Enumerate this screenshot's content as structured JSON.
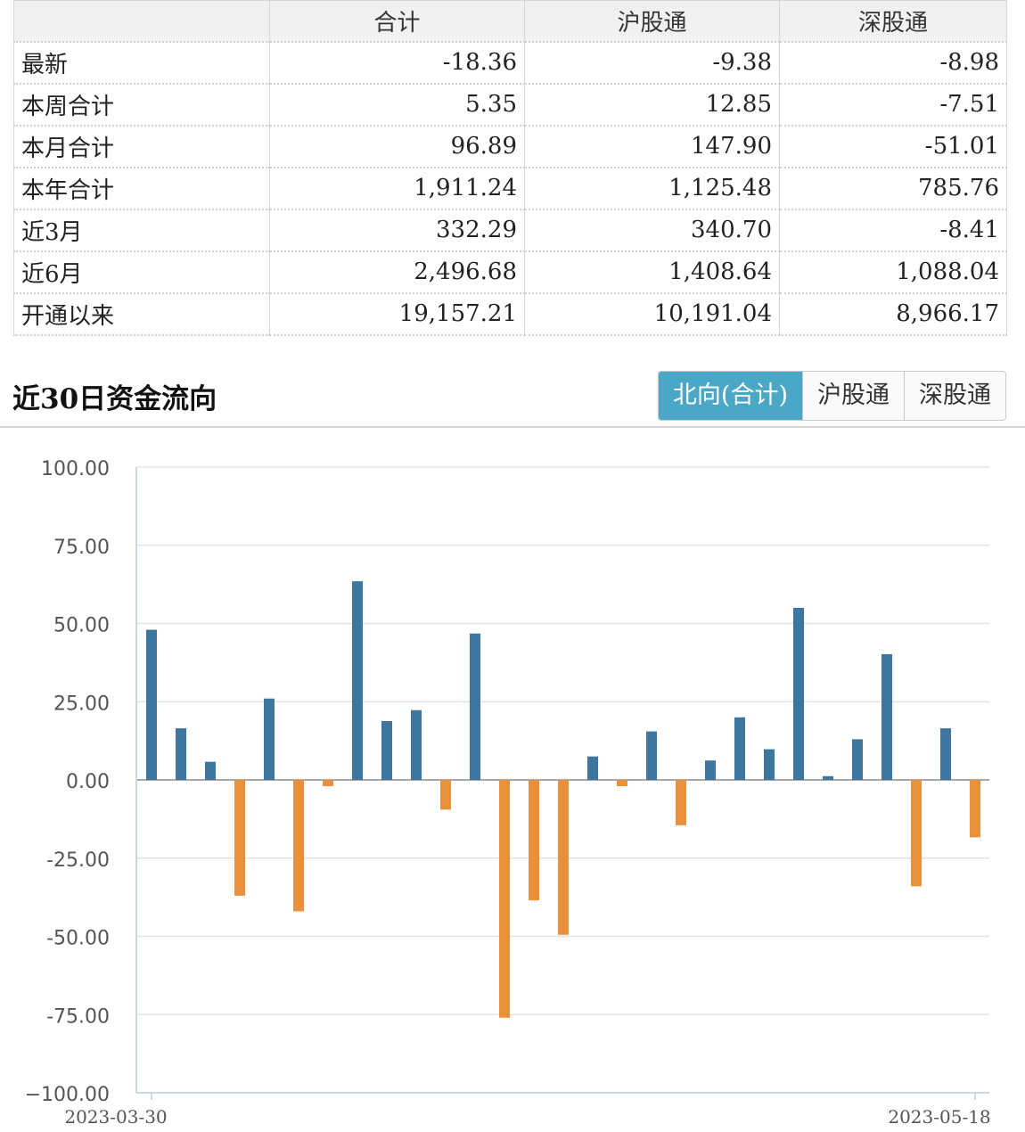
{
  "summary": {
    "headers": [
      "",
      "合计",
      "沪股通",
      "深股通"
    ],
    "rows": [
      {
        "label": "最新",
        "values": [
          "-18.36",
          "-9.38",
          "-8.98"
        ]
      },
      {
        "label": "本周合计",
        "values": [
          "5.35",
          "12.85",
          "-7.51"
        ]
      },
      {
        "label": "本月合计",
        "values": [
          "96.89",
          "147.90",
          "-51.01"
        ]
      },
      {
        "label": "本年合计",
        "values": [
          "1,911.24",
          "1,125.48",
          "785.76"
        ]
      },
      {
        "label": "近3月",
        "values": [
          "332.29",
          "340.70",
          "-8.41"
        ]
      },
      {
        "label": "近6月",
        "values": [
          "2,496.68",
          "1,408.64",
          "1,088.04"
        ]
      },
      {
        "label": "开通以来",
        "values": [
          "19,157.21",
          "10,191.04",
          "8,966.17"
        ]
      }
    ]
  },
  "section": {
    "title": "近30日资金流向",
    "tabs": [
      "北向(合计)",
      "沪股通",
      "深股通"
    ],
    "active_tab": 0
  },
  "colors": {
    "positive": "#3f76a0",
    "negative": "#e8903b",
    "tab_active": "#4aa8c6"
  },
  "chart_data": {
    "type": "bar",
    "title": "",
    "xlabel": "",
    "ylabel": "",
    "ylim": [
      -100,
      100
    ],
    "yticks": [
      100,
      75,
      50,
      25,
      0,
      -25,
      -50,
      -75,
      -100
    ],
    "ytick_labels": [
      "100.00",
      "75.00",
      "50.00",
      "25.00",
      "0.00",
      "-25.00",
      "-50.00",
      "-75.00",
      "−100.00"
    ],
    "x_first_label": "2023-03-30",
    "x_last_label": "2023-05-18",
    "grid": true,
    "values": [
      48.0,
      16.5,
      5.8,
      -37.0,
      26.0,
      -42.0,
      -2.0,
      63.5,
      18.8,
      22.3,
      -9.5,
      46.8,
      -76.0,
      -38.5,
      -49.5,
      7.5,
      -2.0,
      15.5,
      -14.5,
      6.2,
      20.0,
      9.8,
      55.0,
      1.2,
      13.0,
      40.2,
      -34.0,
      16.5,
      -18.36
    ]
  }
}
